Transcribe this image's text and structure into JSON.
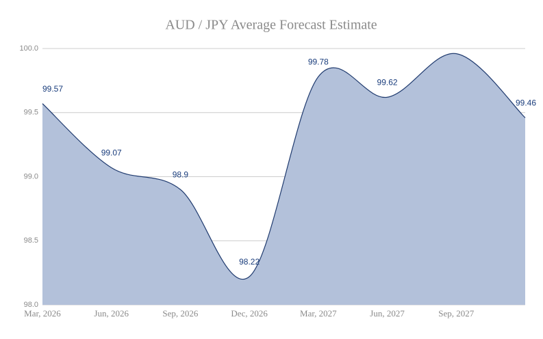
{
  "chart_data": {
    "type": "area",
    "title": "AUD / JPY Average Forecast Estimate",
    "categories": [
      "Mar, 2026",
      "Jun, 2026",
      "Sep, 2026",
      "Dec, 2026",
      "Mar, 2027",
      "Jun, 2027",
      "Sep, 2027",
      null
    ],
    "values": [
      99.57,
      99.07,
      98.9,
      98.22,
      99.78,
      99.62,
      99.96,
      99.46
    ],
    "value_labels": [
      "99.57",
      "99.07",
      "98.9",
      "98.22",
      "99.78",
      "99.62",
      null,
      "99.46"
    ],
    "color": "#b3c1da",
    "line_color": "#1f3a6e",
    "ylim": [
      98,
      100
    ],
    "yticks": [
      {
        "value": 98,
        "label": "98.0"
      },
      {
        "value": 98.5,
        "label": "98.5"
      },
      {
        "value": 99,
        "label": "99.0"
      },
      {
        "value": 99.5,
        "label": "99.5"
      },
      {
        "value": 100,
        "label": "100.0"
      }
    ],
    "grid": true
  }
}
